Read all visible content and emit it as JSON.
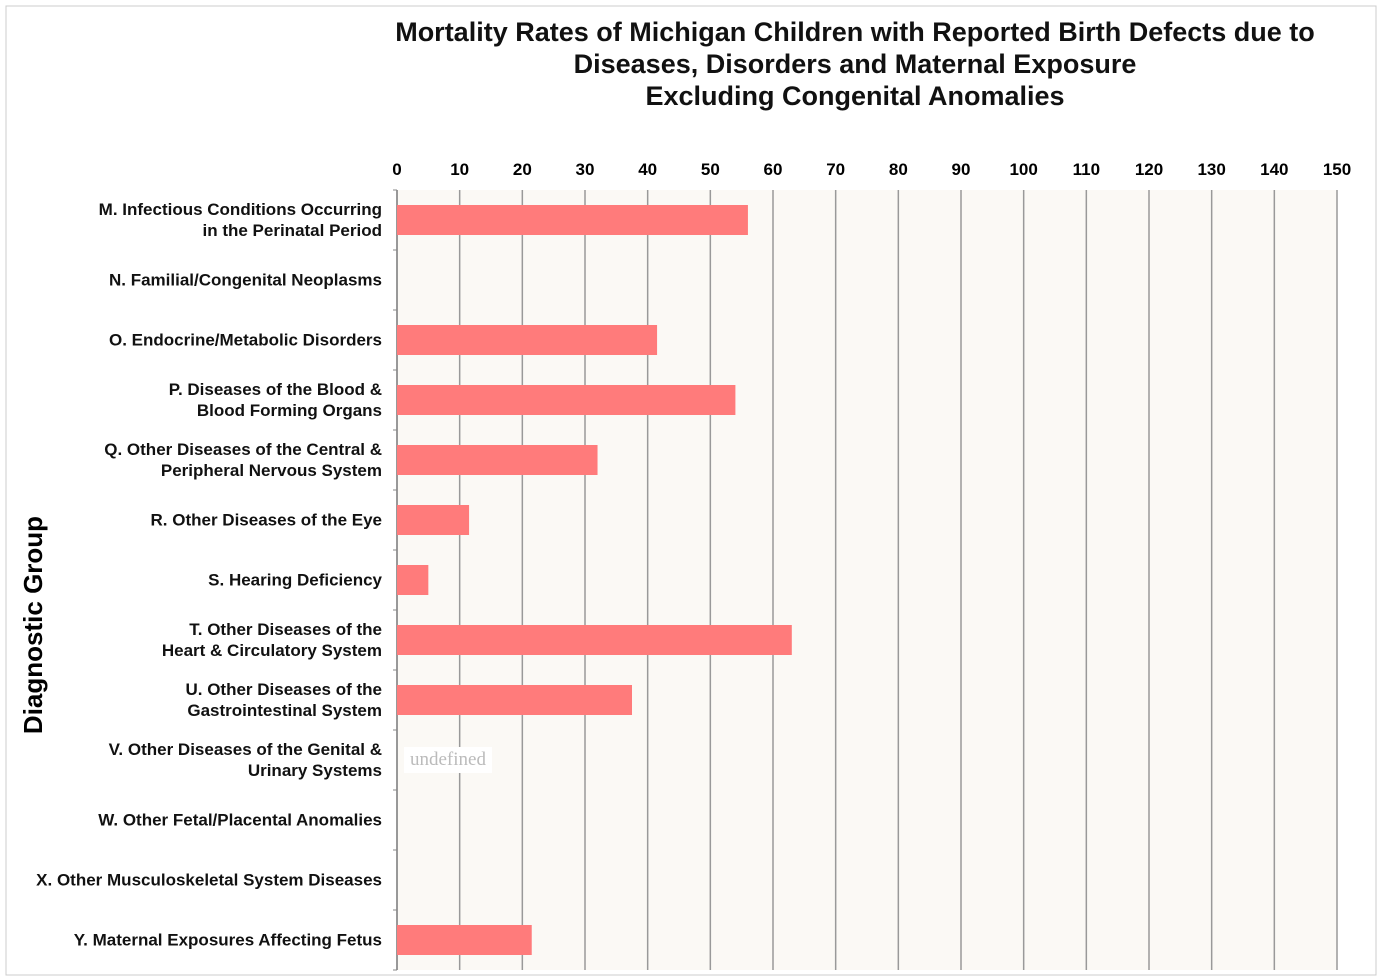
{
  "chart_data": {
    "type": "bar",
    "orientation": "horizontal",
    "title": "Mortality Rates of Michigan Children with Reported Birth Defects due to\nDiseases, Disorders and Maternal Exposure\nExcluding Congenital Anomalies",
    "y_label": "Diagnostic Group",
    "categories": [
      "M. Infectious Conditions Occurring\nin the Perinatal Period",
      "N. Familial/Congenital Neoplasms",
      "O. Endocrine/Metabolic Disorders",
      "P. Diseases of the Blood &\nBlood Forming Organs",
      "Q. Other Diseases of the Central &\nPeripheral Nervous System",
      "R. Other Diseases of the Eye",
      "S. Hearing Deficiency",
      "T. Other Diseases of the\nHeart & Circulatory System",
      "U. Other Diseases of the\nGastrointestinal System",
      "V. Other Diseases of the Genital &\nUrinary Systems",
      "W. Other Fetal/Placental Anomalies",
      "X. Other Musculoskeletal System Diseases",
      "Y. Maternal Exposures Affecting Fetus"
    ],
    "values": [
      56,
      null,
      41.5,
      54,
      32,
      11.5,
      5,
      63,
      37.5,
      null,
      null,
      null,
      21.5
    ],
    "annotations": [
      {
        "text": "undefined",
        "category": 9
      }
    ],
    "color": "#ff7b7b",
    "xlim": [
      0,
      150
    ],
    "xticks": [
      0,
      10,
      20,
      30,
      40,
      50,
      60,
      70,
      80,
      90,
      100,
      110,
      120,
      130,
      140,
      150
    ],
    "grid": true
  }
}
